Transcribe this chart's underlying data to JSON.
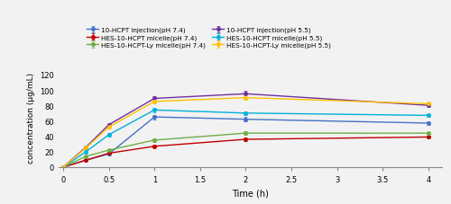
{
  "time_points": [
    0,
    0.25,
    0.5,
    1,
    2,
    4
  ],
  "series": [
    {
      "label": "10-HCPT injection(pH 7.4)",
      "color": "#4472C4",
      "values": [
        0,
        9,
        17,
        65,
        62,
        57
      ],
      "yerr": [
        0,
        1,
        1.5,
        3,
        3,
        2
      ]
    },
    {
      "label": "HES-10-HCPT micelle(pH 7.4)",
      "color": "#C00000",
      "values": [
        0,
        9,
        18,
        27,
        36,
        39
      ],
      "yerr": [
        0,
        1,
        1,
        1.5,
        2,
        1.5
      ]
    },
    {
      "label": "HES-10-HCPT-Ly micelle(pH 7.4)",
      "color": "#70AD47",
      "values": [
        0,
        14,
        22,
        35,
        44,
        44
      ],
      "yerr": [
        0,
        1,
        1.5,
        2,
        2,
        1.5
      ]
    },
    {
      "label": "10-HCPT injection(pH 5.5)",
      "color": "#7030A0",
      "values": [
        0,
        26,
        55,
        89,
        95,
        80
      ],
      "yerr": [
        0,
        1.5,
        2,
        3,
        4,
        2
      ]
    },
    {
      "label": "HES-10-HCPT micelle(pH 5.5)",
      "color": "#00B0D8",
      "values": [
        0,
        20,
        42,
        74,
        70,
        67
      ],
      "yerr": [
        0,
        1,
        2,
        2.5,
        2.5,
        2
      ]
    },
    {
      "label": "HES-10-HCPT-Ly micelle(pH 5.5)",
      "color": "#FFC000",
      "values": [
        0,
        25,
        52,
        85,
        90,
        82
      ],
      "yerr": [
        0,
        1.5,
        2,
        3,
        3,
        2
      ]
    }
  ],
  "xlabel": "Time (h)",
  "ylabel": "concentration (μg/mL)",
  "ylim": [
    0,
    130
  ],
  "xlim": [
    -0.05,
    4.15
  ],
  "xticks": [
    0,
    0.5,
    1.0,
    1.5,
    2.0,
    2.5,
    3.0,
    3.5,
    4.0
  ],
  "yticks": [
    0,
    20,
    40,
    60,
    80,
    100,
    120
  ],
  "figsize": [
    5.0,
    2.28
  ],
  "dpi": 100,
  "bg_color": "#f2f2f2"
}
